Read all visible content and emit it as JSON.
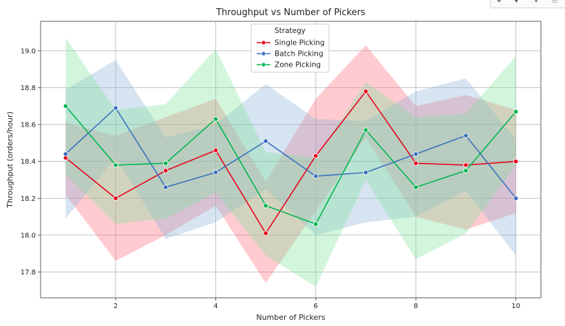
{
  "toolbar": {
    "items": [
      {
        "name": "pan-icon",
        "glyph": "✥"
      },
      {
        "name": "zoom-icon",
        "glyph": "⬧"
      },
      {
        "name": "move-icon",
        "glyph": "↕"
      },
      {
        "name": "save-icon",
        "glyph": "⎘"
      }
    ]
  },
  "chart_data": {
    "type": "line",
    "title": "Throughput vs Number of Pickers",
    "xlabel": "Number of Pickers",
    "ylabel": "Throughput (orders/hour)",
    "xlim": [
      0.5,
      10.5
    ],
    "ylim": [
      17.66,
      19.16
    ],
    "xticks": [
      2,
      4,
      6,
      8,
      10
    ],
    "yticks": [
      17.8,
      18.0,
      18.2,
      18.4,
      18.6,
      18.8,
      19.0
    ],
    "grid": true,
    "legend": {
      "title": "Strategy",
      "placement": "top-center"
    },
    "x": [
      1,
      2,
      3,
      4,
      5,
      6,
      7,
      8,
      9,
      10
    ],
    "series": [
      {
        "name": "Single Picking",
        "color": "#e8001c",
        "band_color": "#ff6b7a",
        "values": [
          18.42,
          18.2,
          18.35,
          18.46,
          18.01,
          18.43,
          18.78,
          18.39,
          18.38,
          18.4
        ],
        "ci_lower": [
          18.22,
          17.86,
          18.0,
          18.16,
          17.74,
          18.13,
          18.53,
          18.1,
          18.03,
          18.12
        ],
        "ci_upper": [
          18.61,
          18.54,
          18.64,
          18.74,
          18.29,
          18.74,
          19.03,
          18.7,
          18.76,
          18.68
        ]
      },
      {
        "name": "Batch Picking",
        "color": "#3a6fbf",
        "band_color": "#8cb1d8",
        "values": [
          18.44,
          18.69,
          18.26,
          18.34,
          18.51,
          18.32,
          18.34,
          18.44,
          18.54,
          18.2
        ],
        "ci_lower": [
          18.09,
          18.42,
          17.98,
          18.07,
          18.25,
          18.0,
          18.07,
          18.1,
          18.24,
          17.89
        ],
        "ci_upper": [
          18.79,
          18.95,
          18.53,
          18.6,
          18.82,
          18.63,
          18.62,
          18.78,
          18.85,
          18.52
        ]
      },
      {
        "name": "Zone Picking",
        "color": "#00b64f",
        "band_color": "#7fe39a",
        "values": [
          18.7,
          18.38,
          18.39,
          18.63,
          18.16,
          18.06,
          18.57,
          18.26,
          18.35,
          18.67
        ],
        "ci_lower": [
          18.33,
          18.06,
          18.09,
          18.23,
          17.89,
          17.72,
          18.3,
          17.87,
          18.01,
          18.38
        ],
        "ci_upper": [
          19.07,
          18.68,
          18.71,
          19.01,
          18.45,
          18.42,
          18.83,
          18.64,
          18.66,
          18.97
        ]
      }
    ]
  }
}
